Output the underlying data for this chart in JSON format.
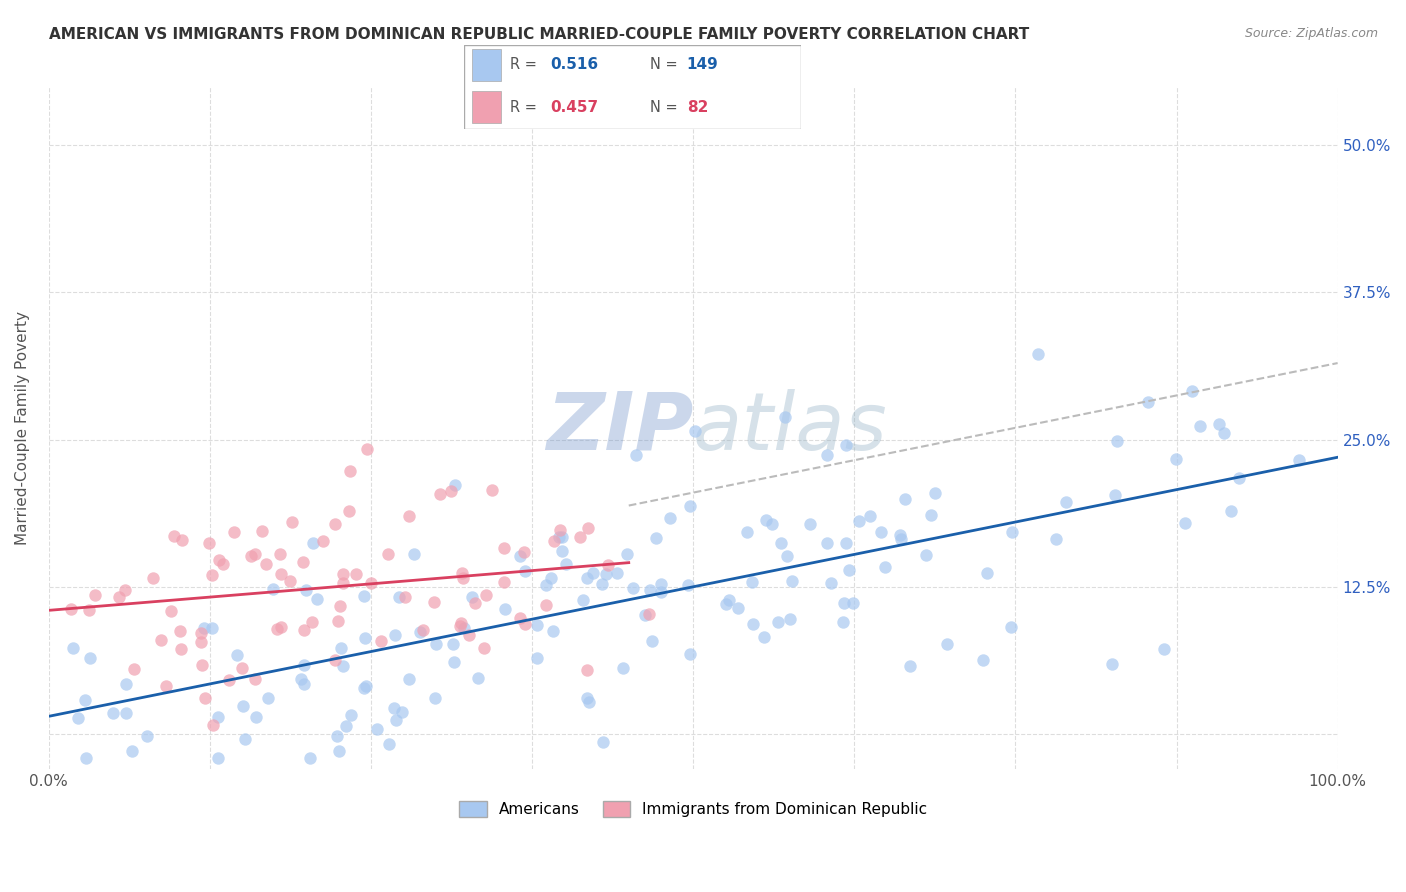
{
  "title": "AMERICAN VS IMMIGRANTS FROM DOMINICAN REPUBLIC MARRIED-COUPLE FAMILY POVERTY CORRELATION CHART",
  "source": "Source: ZipAtlas.com",
  "ylabel": "Married-Couple Family Poverty",
  "xlabel": "",
  "xlim": [
    0,
    100
  ],
  "ylim": [
    -3,
    55
  ],
  "xticks": [
    0,
    12.5,
    25,
    37.5,
    50,
    62.5,
    75,
    87.5,
    100
  ],
  "yticks": [
    0,
    12.5,
    25,
    37.5,
    50
  ],
  "ytick_labels_right": [
    "",
    "12.5%",
    "25.0%",
    "37.5%",
    "50.0%"
  ],
  "xtick_labels": [
    "0.0%",
    "",
    "",
    "",
    "",
    "",
    "",
    "",
    "100.0%"
  ],
  "american_color": "#a8c8f0",
  "immigrant_color": "#f0a0b0",
  "american_R": 0.516,
  "american_N": 149,
  "immigrant_R": 0.457,
  "immigrant_N": 82,
  "american_line_color": "#1a5faa",
  "immigrant_line_color": "#d94060",
  "dashed_line_color": "#cccccc",
  "watermark": "ZIPAtlas",
  "watermark_color_zip": "#7090c0",
  "watermark_color_atlas": "#90a8c0",
  "background_color": "#ffffff",
  "title_fontsize": 11,
  "seed_american": 42,
  "seed_immigrant": 99,
  "american_slope": 0.22,
  "american_intercept": 1.5,
  "immigrant_slope": 0.09,
  "immigrant_intercept": 10.5
}
